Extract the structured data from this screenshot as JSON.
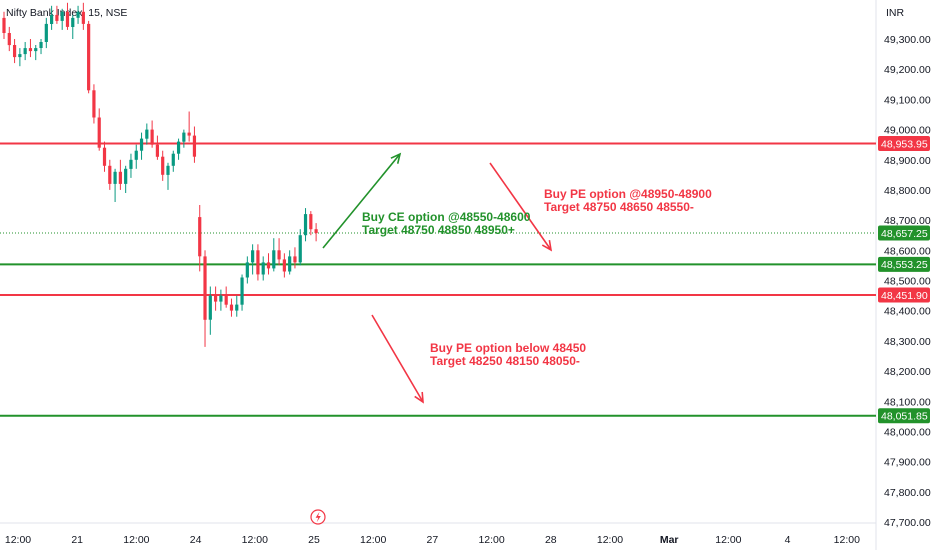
{
  "chart_data": {
    "type": "candlestick",
    "title": "Nifty Bank Index, 15, NSE",
    "currency": "INR",
    "y_range": [
      47650,
      49450
    ],
    "y_ticks": [
      "49,300.00",
      "49,200.00",
      "49,100.00",
      "49,000.00",
      "48,900.00",
      "48,800.00",
      "48,700.00",
      "48,600.00",
      "48,500.00",
      "48,400.00",
      "48,300.00",
      "48,200.00",
      "48,100.00",
      "48,000.00",
      "47,900.00",
      "47,800.00",
      "47,700.00"
    ],
    "y_tick_values": [
      49300,
      49200,
      49100,
      49000,
      48900,
      48800,
      48700,
      48600,
      48500,
      48400,
      48300,
      48200,
      48100,
      48000,
      47900,
      47800,
      47700
    ],
    "x_ticks": [
      {
        "label": "12:00",
        "bold": false
      },
      {
        "label": "21",
        "bold": false
      },
      {
        "label": "12:00",
        "bold": false
      },
      {
        "label": "24",
        "bold": false
      },
      {
        "label": "12:00",
        "bold": false
      },
      {
        "label": "25",
        "bold": false
      },
      {
        "label": "12:00",
        "bold": false
      },
      {
        "label": "27",
        "bold": false
      },
      {
        "label": "12:00",
        "bold": false
      },
      {
        "label": "28",
        "bold": false
      },
      {
        "label": "12:00",
        "bold": false
      },
      {
        "label": "Mar",
        "bold": true
      },
      {
        "label": "12:00",
        "bold": false
      },
      {
        "label": "4",
        "bold": false
      },
      {
        "label": "12:00",
        "bold": false
      }
    ],
    "levels": [
      {
        "value": 48953.95,
        "label": "48,953.95",
        "color": "#f23645"
      },
      {
        "value": 48553.25,
        "label": "48,553.25",
        "color": "#22922b"
      },
      {
        "value": 48451.9,
        "label": "48,451.90",
        "color": "#f23645"
      },
      {
        "value": 48051.85,
        "label": "48,051.85",
        "color": "#22922b"
      }
    ],
    "last_price": {
      "value": 48657.25,
      "label": "48,657.25",
      "color": "#22922b"
    },
    "annotations": [
      {
        "lines": [
          "Buy CE option @48550-48600",
          "Target 48750 48850 48950+"
        ],
        "color": "#22922b"
      },
      {
        "lines": [
          "Buy PE option @48950-48900",
          "Target 48750 48650 48550-"
        ],
        "color": "#f23645"
      },
      {
        "lines": [
          "Buy PE option below 48450",
          "Target 48250 48150 48050-"
        ],
        "color": "#f23645"
      }
    ],
    "candles": [
      [
        49370,
        49390,
        49300,
        49320
      ],
      [
        49320,
        49340,
        49260,
        49280
      ],
      [
        49280,
        49300,
        49220,
        49240
      ],
      [
        49240,
        49270,
        49210,
        49250
      ],
      [
        49250,
        49290,
        49230,
        49270
      ],
      [
        49270,
        49300,
        49240,
        49260
      ],
      [
        49260,
        49280,
        49230,
        49270
      ],
      [
        49270,
        49300,
        49250,
        49290
      ],
      [
        49290,
        49370,
        49270,
        49350
      ],
      [
        49350,
        49410,
        49330,
        49380
      ],
      [
        49380,
        49410,
        49350,
        49360
      ],
      [
        49360,
        49400,
        49330,
        49390
      ],
      [
        49390,
        49420,
        49330,
        49340
      ],
      [
        49340,
        49380,
        49300,
        49370
      ],
      [
        49370,
        49410,
        49350,
        49390
      ],
      [
        49390,
        49420,
        49330,
        49350
      ],
      [
        49350,
        49360,
        49120,
        49130
      ],
      [
        49130,
        49150,
        49020,
        49040
      ],
      [
        49040,
        49070,
        48930,
        48940
      ],
      [
        48940,
        48960,
        48860,
        48880
      ],
      [
        48880,
        48900,
        48800,
        48820
      ],
      [
        48820,
        48870,
        48760,
        48860
      ],
      [
        48860,
        48900,
        48800,
        48820
      ],
      [
        48820,
        48880,
        48790,
        48870
      ],
      [
        48870,
        48920,
        48840,
        48900
      ],
      [
        48900,
        48950,
        48870,
        48930
      ],
      [
        48930,
        48990,
        48900,
        48970
      ],
      [
        48970,
        49020,
        48950,
        49000
      ],
      [
        49000,
        49030,
        48940,
        48950
      ],
      [
        48950,
        48980,
        48900,
        48910
      ],
      [
        48910,
        48930,
        48830,
        48850
      ],
      [
        48850,
        48890,
        48800,
        48880
      ],
      [
        48880,
        48930,
        48860,
        48920
      ],
      [
        48920,
        48970,
        48900,
        48960
      ],
      [
        48960,
        49000,
        48940,
        48990
      ],
      [
        48990,
        49060,
        48960,
        48980
      ],
      [
        48980,
        49010,
        48890,
        48910
      ],
      [
        48710,
        48750,
        48530,
        48580
      ],
      [
        48580,
        48600,
        48280,
        48370
      ],
      [
        48370,
        48480,
        48320,
        48450
      ],
      [
        48450,
        48480,
        48400,
        48430
      ],
      [
        48430,
        48470,
        48400,
        48450
      ],
      [
        48450,
        48480,
        48410,
        48420
      ],
      [
        48420,
        48440,
        48380,
        48400
      ],
      [
        48400,
        48450,
        48380,
        48420
      ],
      [
        48420,
        48520,
        48400,
        48510
      ],
      [
        48510,
        48580,
        48490,
        48560
      ],
      [
        48560,
        48620,
        48520,
        48600
      ],
      [
        48600,
        48620,
        48500,
        48520
      ],
      [
        48520,
        48580,
        48500,
        48560
      ],
      [
        48560,
        48590,
        48520,
        48540
      ],
      [
        48540,
        48640,
        48530,
        48600
      ],
      [
        48600,
        48640,
        48550,
        48570
      ],
      [
        48570,
        48590,
        48510,
        48530
      ],
      [
        48530,
        48600,
        48520,
        48580
      ],
      [
        48580,
        48610,
        48540,
        48560
      ],
      [
        48560,
        48670,
        48550,
        48650
      ],
      [
        48650,
        48740,
        48630,
        48720
      ],
      [
        48720,
        48730,
        48650,
        48670
      ],
      [
        48670,
        48690,
        48630,
        48657
      ]
    ]
  },
  "icons": {
    "flash": "lightning-icon"
  }
}
